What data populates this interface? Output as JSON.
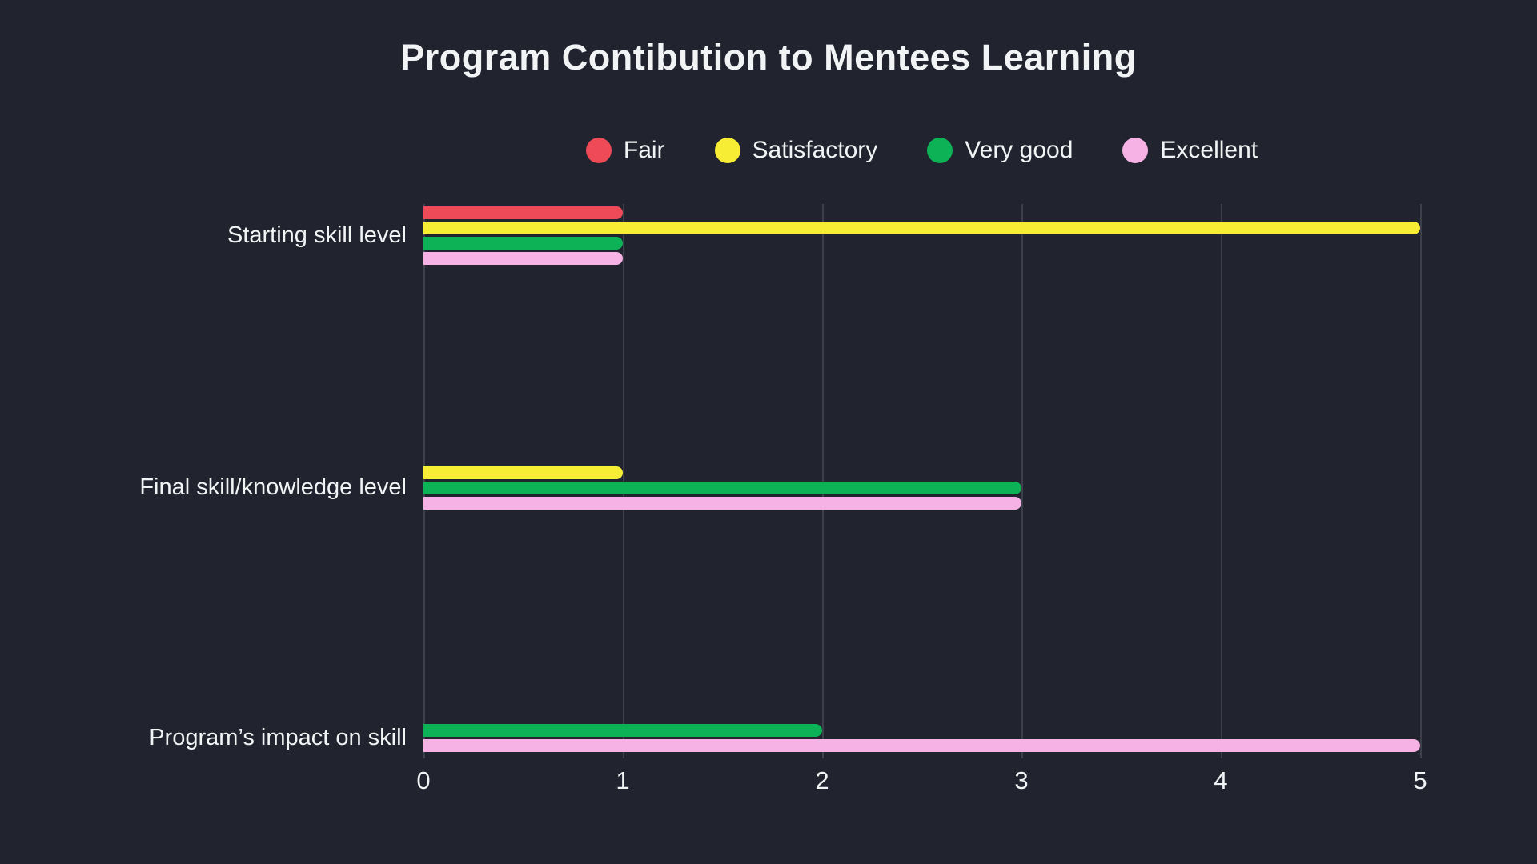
{
  "colors": {
    "background": "#21232e",
    "text": "#f2f3f5",
    "gridline": "#3d3f4a"
  },
  "chart_data": {
    "type": "bar",
    "orientation": "horizontal",
    "title": "Program Contibution to Mentees Learning",
    "categories": [
      "Starting skill level",
      "Final skill/knowledge level",
      "Program’s impact on skill"
    ],
    "series": [
      {
        "name": "Fair",
        "color": "#ee4a57",
        "values": [
          1,
          0,
          0
        ]
      },
      {
        "name": "Satisfactory",
        "color": "#f6ed34",
        "values": [
          5,
          1,
          0
        ]
      },
      {
        "name": "Very good",
        "color": "#0db156",
        "values": [
          1,
          3,
          2
        ]
      },
      {
        "name": "Excellent",
        "color": "#f6b2e5",
        "values": [
          1,
          3,
          5
        ]
      }
    ],
    "xlabel": "",
    "ylabel": "",
    "xlim": [
      0,
      5
    ],
    "x_ticks": [
      0,
      1,
      2,
      3,
      4,
      5
    ],
    "legend": [
      "Fair",
      "Satisfactory",
      "Very good",
      "Excellent"
    ],
    "legend_position": "top",
    "legend_marker": "circle-icon",
    "grid": true,
    "bars_hidden_when_zero": true
  }
}
